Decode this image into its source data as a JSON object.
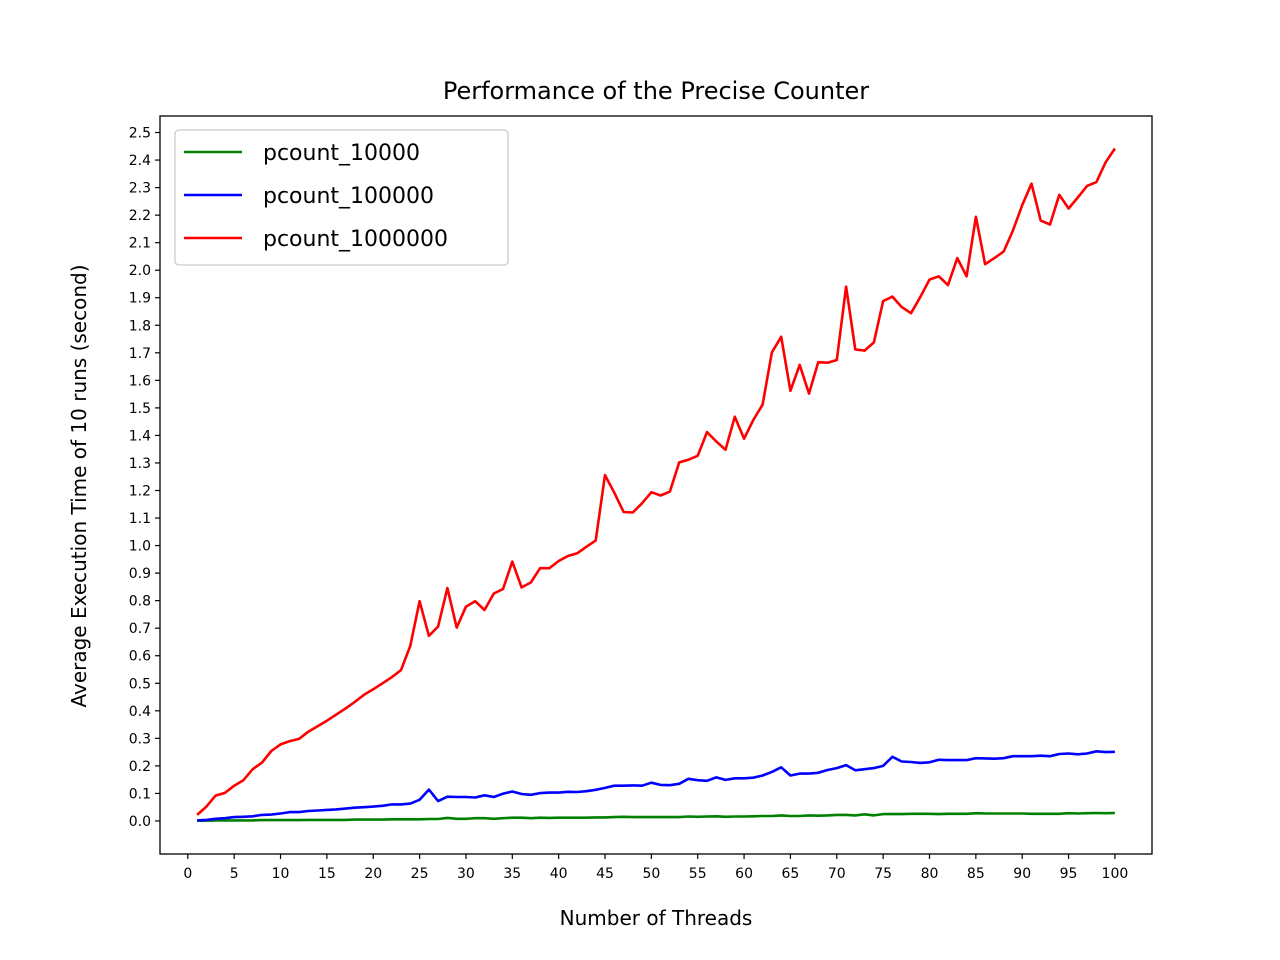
{
  "chart_data": {
    "type": "line",
    "title": "Performance of the Precise Counter",
    "xlabel": "Number of Threads",
    "ylabel": "Average Execution Time of 10 runs (second)",
    "xlim": [
      -3,
      104
    ],
    "ylim": [
      -0.12,
      2.56
    ],
    "xticks": [
      0,
      5,
      10,
      15,
      20,
      25,
      30,
      35,
      40,
      45,
      50,
      55,
      60,
      65,
      70,
      75,
      80,
      85,
      90,
      95,
      100
    ],
    "yticks": [
      0.0,
      0.1,
      0.2,
      0.3,
      0.4,
      0.5,
      0.6,
      0.7,
      0.8,
      0.9,
      1.0,
      1.1,
      1.2,
      1.3,
      1.4,
      1.5,
      1.6,
      1.7,
      1.8,
      1.9,
      2.0,
      2.1,
      2.2,
      2.3,
      2.4,
      2.5
    ],
    "grid": false,
    "legend_position": "top-left",
    "x": [
      1,
      2,
      3,
      4,
      5,
      6,
      7,
      8,
      9,
      10,
      11,
      12,
      13,
      14,
      15,
      16,
      17,
      18,
      19,
      20,
      21,
      22,
      23,
      24,
      25,
      26,
      27,
      28,
      29,
      30,
      31,
      32,
      33,
      34,
      35,
      36,
      37,
      38,
      39,
      40,
      41,
      42,
      43,
      44,
      45,
      46,
      47,
      48,
      49,
      50,
      51,
      52,
      53,
      54,
      55,
      56,
      57,
      58,
      59,
      60,
      61,
      62,
      63,
      64,
      65,
      66,
      67,
      68,
      69,
      70,
      71,
      72,
      73,
      74,
      75,
      76,
      77,
      78,
      79,
      80,
      81,
      82,
      83,
      84,
      85,
      86,
      87,
      88,
      89,
      90,
      91,
      92,
      93,
      94,
      95,
      96,
      97,
      98,
      99,
      100
    ],
    "series": [
      {
        "name": "pcount_10000",
        "color": "#008000",
        "values": [
          0.001,
          0.001,
          0.002,
          0.002,
          0.002,
          0.002,
          0.002,
          0.003,
          0.003,
          0.003,
          0.003,
          0.003,
          0.004,
          0.004,
          0.004,
          0.004,
          0.004,
          0.005,
          0.005,
          0.005,
          0.005,
          0.006,
          0.006,
          0.006,
          0.006,
          0.007,
          0.007,
          0.011,
          0.008,
          0.008,
          0.01,
          0.01,
          0.008,
          0.01,
          0.012,
          0.012,
          0.01,
          0.012,
          0.011,
          0.012,
          0.012,
          0.012,
          0.012,
          0.013,
          0.013,
          0.014,
          0.015,
          0.014,
          0.014,
          0.014,
          0.014,
          0.014,
          0.014,
          0.016,
          0.015,
          0.016,
          0.017,
          0.015,
          0.016,
          0.016,
          0.017,
          0.018,
          0.018,
          0.02,
          0.018,
          0.018,
          0.02,
          0.019,
          0.02,
          0.022,
          0.022,
          0.02,
          0.024,
          0.02,
          0.025,
          0.025,
          0.025,
          0.026,
          0.026,
          0.026,
          0.025,
          0.026,
          0.026,
          0.026,
          0.028,
          0.027,
          0.027,
          0.027,
          0.027,
          0.027,
          0.026,
          0.026,
          0.026,
          0.026,
          0.028,
          0.027,
          0.028,
          0.029,
          0.028,
          0.029
        ]
      },
      {
        "name": "pcount_100000",
        "color": "#0000ff",
        "values": [
          0.002,
          0.004,
          0.008,
          0.01,
          0.014,
          0.015,
          0.017,
          0.022,
          0.023,
          0.027,
          0.032,
          0.032,
          0.036,
          0.038,
          0.04,
          0.042,
          0.045,
          0.048,
          0.05,
          0.052,
          0.055,
          0.06,
          0.06,
          0.063,
          0.077,
          0.114,
          0.072,
          0.088,
          0.087,
          0.087,
          0.085,
          0.093,
          0.087,
          0.099,
          0.107,
          0.098,
          0.095,
          0.101,
          0.103,
          0.103,
          0.106,
          0.105,
          0.108,
          0.113,
          0.12,
          0.128,
          0.128,
          0.129,
          0.128,
          0.139,
          0.131,
          0.13,
          0.135,
          0.153,
          0.148,
          0.146,
          0.158,
          0.149,
          0.155,
          0.155,
          0.157,
          0.165,
          0.178,
          0.195,
          0.165,
          0.172,
          0.172,
          0.175,
          0.185,
          0.192,
          0.203,
          0.184,
          0.188,
          0.192,
          0.2,
          0.233,
          0.216,
          0.214,
          0.211,
          0.213,
          0.222,
          0.221,
          0.221,
          0.221,
          0.228,
          0.227,
          0.226,
          0.228,
          0.235,
          0.235,
          0.235,
          0.237,
          0.235,
          0.243,
          0.245,
          0.242,
          0.245,
          0.253,
          0.25,
          0.251
        ]
      },
      {
        "name": "pcount_1000000",
        "color": "#ff0000",
        "values": [
          0.022,
          0.052,
          0.092,
          0.102,
          0.128,
          0.148,
          0.188,
          0.212,
          0.254,
          0.278,
          0.29,
          0.298,
          0.324,
          0.344,
          0.364,
          0.386,
          0.408,
          0.432,
          0.458,
          0.478,
          0.5,
          0.522,
          0.548,
          0.636,
          0.798,
          0.672,
          0.706,
          0.846,
          0.702,
          0.778,
          0.798,
          0.766,
          0.826,
          0.842,
          0.942,
          0.848,
          0.866,
          0.918,
          0.918,
          0.944,
          0.962,
          0.972,
          0.996,
          1.018,
          1.256,
          1.192,
          1.122,
          1.12,
          1.154,
          1.194,
          1.182,
          1.196,
          1.302,
          1.312,
          1.326,
          1.412,
          1.378,
          1.348,
          1.468,
          1.388,
          1.456,
          1.512,
          1.702,
          1.758,
          1.562,
          1.656,
          1.552,
          1.666,
          1.664,
          1.674,
          1.94,
          1.712,
          1.708,
          1.738,
          1.888,
          1.904,
          1.866,
          1.844,
          1.902,
          1.966,
          1.978,
          1.946,
          2.044,
          1.978,
          2.194,
          2.022,
          2.044,
          2.068,
          2.144,
          2.236,
          2.314,
          2.18,
          2.166,
          2.274,
          2.224,
          2.264,
          2.306,
          2.32,
          2.392,
          2.442
        ]
      }
    ]
  }
}
